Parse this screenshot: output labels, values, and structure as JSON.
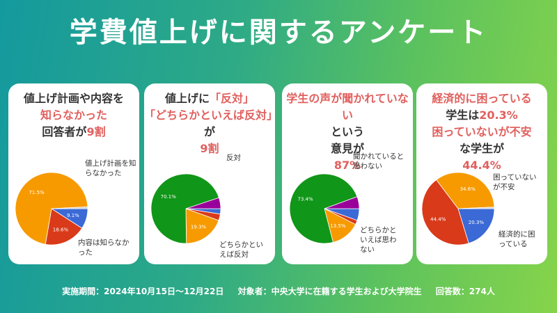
{
  "title": "学費値上げに関するアンケート",
  "colors": {
    "orange": "#f79a00",
    "red": "#d93a1a",
    "blue": "#3b6ad6",
    "green": "#109618",
    "purple": "#990099",
    "gray": "#cccccc",
    "highlight": "#e0605e"
  },
  "panels": [
    {
      "heading": [
        [
          "値上げ計画や内容",
          ""
        ],
        [
          "を",
          ""
        ],
        [
          "知らなかった",
          "hl"
        ],
        [
          "回答者が",
          ""
        ],
        [
          "9割",
          "hl"
        ]
      ],
      "labels": [
        "値上げ計画を知らなかった",
        "内容は知らなかった"
      ]
    },
    {
      "heading": [
        [
          "値上げに",
          ""
        ],
        [
          "「反対」",
          "hl"
        ],
        [
          "「どちらかといえば反対」",
          "hl"
        ],
        [
          "が",
          ""
        ],
        [
          "9割",
          "hl"
        ]
      ],
      "labels": [
        "反対",
        "どちらかといえば反対"
      ]
    },
    {
      "heading": [
        [
          "学生の声が聞かれていない",
          "hl"
        ],
        [
          "という",
          ""
        ],
        [
          "意見が",
          ""
        ],
        [
          "87%",
          "hl"
        ]
      ],
      "labels": [
        "聞かれていると思わない",
        "どちらかといえば思わない"
      ]
    },
    {
      "heading": [
        [
          "経済的に困っている",
          "hl"
        ],
        [
          "学生は",
          ""
        ],
        [
          "20.3%",
          "hl"
        ],
        [
          "困っていないが不安",
          "hl"
        ],
        [
          "な学生が",
          ""
        ],
        [
          "44.4%",
          "hl"
        ]
      ],
      "labels": [
        "困っていないが不安",
        "経済的に困っている"
      ]
    }
  ],
  "chart_data": [
    {
      "type": "pie",
      "slices": [
        {
          "value": 9.1,
          "label": "9.1%",
          "color": "#3b6ad6"
        },
        {
          "value": 18.6,
          "label": "18.6%",
          "color": "#d93a1a"
        },
        {
          "value": 71.5,
          "label": "71.5%",
          "color": "#f79a00"
        },
        {
          "value": 0.8,
          "label": "",
          "color": "#cccccc"
        }
      ]
    },
    {
      "type": "pie",
      "slices": [
        {
          "value": 2.5,
          "label": "",
          "color": "#3b6ad6"
        },
        {
          "value": 3,
          "label": "",
          "color": "#d93a1a"
        },
        {
          "value": 19.3,
          "label": "19.3%",
          "color": "#f79a00"
        },
        {
          "value": 70.1,
          "label": "70.1%",
          "color": "#109618"
        },
        {
          "value": 5.1,
          "label": "",
          "color": "#990099"
        }
      ]
    },
    {
      "type": "pie",
      "slices": [
        {
          "value": 5.5,
          "label": "",
          "color": "#3b6ad6"
        },
        {
          "value": 2,
          "label": "",
          "color": "#d93a1a"
        },
        {
          "value": 13.5,
          "label": "13.5%",
          "color": "#f79a00"
        },
        {
          "value": 73.4,
          "label": "73.4%",
          "color": "#109618"
        },
        {
          "value": 5.6,
          "label": "",
          "color": "#990099"
        }
      ]
    },
    {
      "type": "pie",
      "slices": [
        {
          "value": 20.3,
          "label": "20.3%",
          "color": "#3b6ad6"
        },
        {
          "value": 44.4,
          "label": "44.4%",
          "color": "#d93a1a"
        },
        {
          "value": 34.6,
          "label": "34.6%",
          "color": "#f79a00"
        },
        {
          "value": 0.7,
          "label": "",
          "color": "#cccccc"
        }
      ]
    }
  ],
  "footer": {
    "period": "実施期間：2024年10月15日～12月22日",
    "target": "対象者：中央大学に在籍する学生および大学院生",
    "count": "回答数：274人"
  }
}
